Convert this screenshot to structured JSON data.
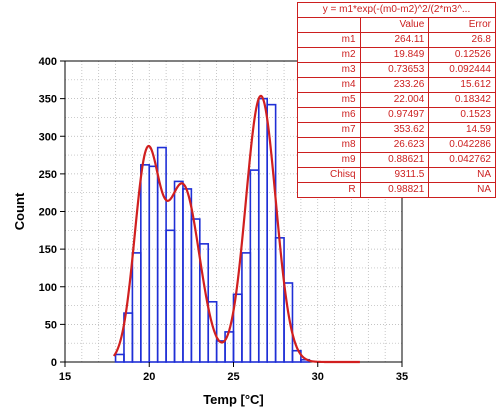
{
  "colors": {
    "histogram": "#1f2fd6",
    "fit": "#d11f1f",
    "table": "#cc1f1f",
    "grid": "#b0b0b0"
  },
  "chart_data": {
    "type": "histogram with fitted curve",
    "xlabel": "Temp [°C]",
    "ylabel": "Count",
    "xlim": [
      15,
      35
    ],
    "ylim": [
      0,
      400
    ],
    "xticks": [
      15,
      20,
      25,
      30,
      35
    ],
    "yticks": [
      0,
      50,
      100,
      150,
      200,
      250,
      300,
      350,
      400
    ],
    "grid": true,
    "histogram": {
      "bin_width": 0.5,
      "bins": [
        {
          "x": 18.0,
          "count": 10
        },
        {
          "x": 18.5,
          "count": 65
        },
        {
          "x": 19.0,
          "count": 145
        },
        {
          "x": 19.5,
          "count": 262
        },
        {
          "x": 20.0,
          "count": 260
        },
        {
          "x": 20.5,
          "count": 285
        },
        {
          "x": 21.0,
          "count": 175
        },
        {
          "x": 21.5,
          "count": 240
        },
        {
          "x": 22.0,
          "count": 230
        },
        {
          "x": 22.5,
          "count": 190
        },
        {
          "x": 23.0,
          "count": 157
        },
        {
          "x": 23.5,
          "count": 80
        },
        {
          "x": 24.0,
          "count": 28
        },
        {
          "x": 24.5,
          "count": 40
        },
        {
          "x": 25.0,
          "count": 90
        },
        {
          "x": 25.5,
          "count": 145
        },
        {
          "x": 26.0,
          "count": 255
        },
        {
          "x": 26.5,
          "count": 350
        },
        {
          "x": 27.0,
          "count": 342
        },
        {
          "x": 27.5,
          "count": 165
        },
        {
          "x": 28.0,
          "count": 105
        },
        {
          "x": 28.5,
          "count": 15
        },
        {
          "x": 29.0,
          "count": 3
        }
      ]
    },
    "fit": {
      "equation": "y = m1*exp(-(m0-m2)^2/(2*m3^...",
      "curve_x_range": [
        17.9,
        32.5
      ]
    }
  },
  "fit_table": {
    "header": "y = m1*exp(-(m0-m2)^2/(2*m3^...",
    "columns": [
      "",
      "Value",
      "Error"
    ],
    "rows": [
      {
        "name": "m1",
        "value": "264.11",
        "error": "26.8"
      },
      {
        "name": "m2",
        "value": "19.849",
        "error": "0.12526"
      },
      {
        "name": "m3",
        "value": "0.73653",
        "error": "0.092444"
      },
      {
        "name": "m4",
        "value": "233.26",
        "error": "15.612"
      },
      {
        "name": "m5",
        "value": "22.004",
        "error": "0.18342"
      },
      {
        "name": "m6",
        "value": "0.97497",
        "error": "0.1523"
      },
      {
        "name": "m7",
        "value": "353.62",
        "error": "14.59"
      },
      {
        "name": "m8",
        "value": "26.623",
        "error": "0.042286"
      },
      {
        "name": "m9",
        "value": "0.88621",
        "error": "0.042762"
      },
      {
        "name": "Chisq",
        "value": "9311.5",
        "error": "NA"
      },
      {
        "name": "R",
        "value": "0.98821",
        "error": "NA"
      }
    ]
  }
}
